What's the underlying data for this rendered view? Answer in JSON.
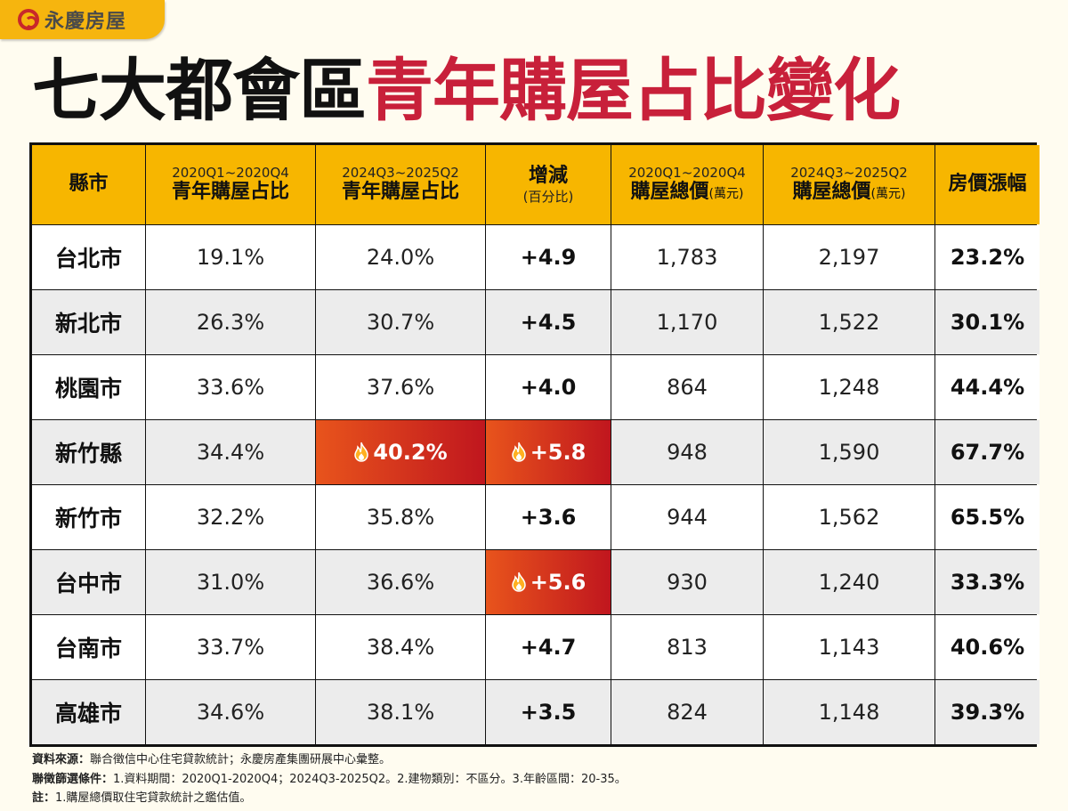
{
  "brand": {
    "name": "永慶房屋",
    "color": "#f6b50e"
  },
  "title": {
    "part1": "七大都會區",
    "part2": "青年購屋占比變化",
    "accent_color": "#c8203a"
  },
  "chart_data": {
    "type": "table",
    "columns": [
      {
        "main": "縣市"
      },
      {
        "sub": "2020Q1~2020Q4",
        "main": "青年購屋占比"
      },
      {
        "sub": "2024Q3~2025Q2",
        "main": "青年購屋占比"
      },
      {
        "main": "增減",
        "note": "(百分比)"
      },
      {
        "sub": "2020Q1~2020Q4",
        "main": "購屋總價",
        "unit": "(萬元)"
      },
      {
        "sub": "2024Q3~2025Q2",
        "main": "購屋總價",
        "unit": "(萬元)"
      },
      {
        "main": "房價漲幅"
      }
    ],
    "rows": [
      {
        "city": "台北市",
        "share_2020": "19.1%",
        "share_2024": "24.0%",
        "change": "+4.9",
        "price_2020": "1,783",
        "price_2024": "2,197",
        "growth": "23.2%"
      },
      {
        "city": "新北市",
        "share_2020": "26.3%",
        "share_2024": "30.7%",
        "change": "+4.5",
        "price_2020": "1,170",
        "price_2024": "1,522",
        "growth": "30.1%"
      },
      {
        "city": "桃園市",
        "share_2020": "33.6%",
        "share_2024": "37.6%",
        "change": "+4.0",
        "price_2020": "864",
        "price_2024": "1,248",
        "growth": "44.4%"
      },
      {
        "city": "新竹縣",
        "share_2020": "34.4%",
        "share_2024": "40.2%",
        "change": "+5.8",
        "price_2020": "948",
        "price_2024": "1,590",
        "growth": "67.7%",
        "highlight": [
          "share_2024",
          "change"
        ]
      },
      {
        "city": "新竹市",
        "share_2020": "32.2%",
        "share_2024": "35.8%",
        "change": "+3.6",
        "price_2020": "944",
        "price_2024": "1,562",
        "growth": "65.5%"
      },
      {
        "city": "台中市",
        "share_2020": "31.0%",
        "share_2024": "36.6%",
        "change": "+5.6",
        "price_2020": "930",
        "price_2024": "1,240",
        "growth": "33.3%",
        "highlight": [
          "change"
        ]
      },
      {
        "city": "台南市",
        "share_2020": "33.7%",
        "share_2024": "38.4%",
        "change": "+4.7",
        "price_2020": "813",
        "price_2024": "1,143",
        "growth": "40.6%"
      },
      {
        "city": "高雄市",
        "share_2020": "34.6%",
        "share_2024": "38.1%",
        "change": "+3.5",
        "price_2020": "824",
        "price_2024": "1,148",
        "growth": "39.3%"
      }
    ],
    "highlight_icon": "fire-icon",
    "colors": {
      "header": "#f7b600",
      "highlight_start": "#e8541c",
      "highlight_end": "#c0161e",
      "alt_row": "#ececec"
    }
  },
  "footer": {
    "source_label": "資料來源：",
    "source_text": "聯合徵信中心住宅貸款統計；永慶房產集團研展中心彙整。",
    "criteria_label": "聯徵篩選條件：",
    "criteria_text": "1.資料期間：2020Q1-2020Q4；2024Q3-2025Q2。2.建物類別：不區分。3.年齡區間：20-35。",
    "note_label": "註：",
    "note_text": "1.購屋總價取住宅貸款統計之鑑估值。"
  }
}
